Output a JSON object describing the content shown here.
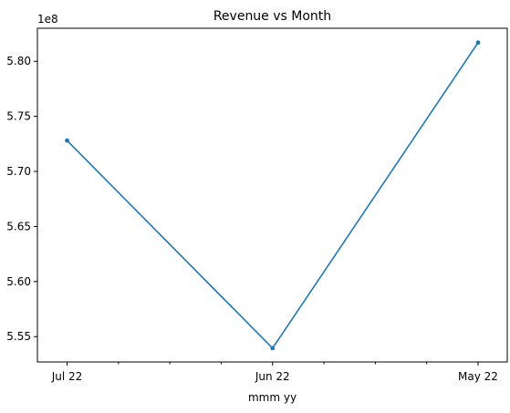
{
  "chart_data": {
    "type": "line",
    "title": "Revenue vs Month",
    "xlabel": "mmm yy",
    "ylabel": "",
    "offset_label": "1e8",
    "categories": [
      "Jul 22",
      "Jun 22",
      "May 22"
    ],
    "series": [
      {
        "values": [
          572800000,
          553950000,
          581700000
        ],
        "color": "#1f77b4"
      }
    ],
    "ylim": [
      552700000,
      583000000
    ],
    "yticks": [
      {
        "value": 555000000,
        "label": "5.55"
      },
      {
        "value": 560000000,
        "label": "5.60"
      },
      {
        "value": 565000000,
        "label": "5.65"
      },
      {
        "value": 570000000,
        "label": "5.70"
      },
      {
        "value": 575000000,
        "label": "5.75"
      },
      {
        "value": 580000000,
        "label": "5.80"
      }
    ],
    "minor_xticks_between_categories": 3,
    "grid": false,
    "legend": "none",
    "markers": true
  }
}
